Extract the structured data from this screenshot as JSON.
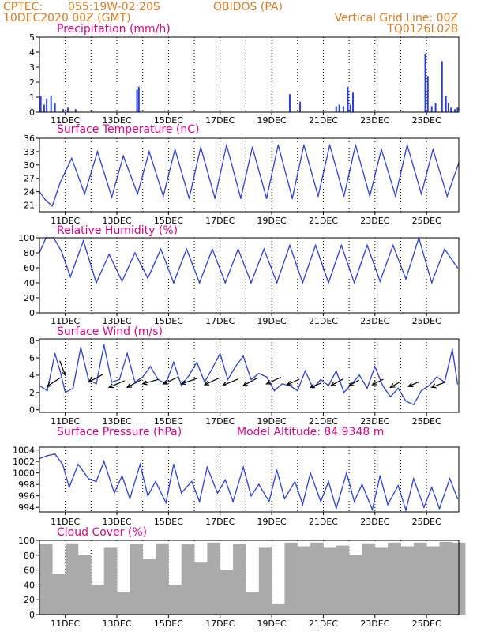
{
  "header": {
    "source": "CPTEC:",
    "coords": "055:19W-02:20S",
    "station": "OBIDOS (PA)",
    "run": "10DEC2020 00Z (GMT)",
    "grid_note": "Vertical Grid Line: 00Z",
    "model": "TQ0126L028"
  },
  "colors": {
    "header": "#e07a1f",
    "title": "#e0008a",
    "line": "#2a3fe0",
    "cloud": "#aaaaaa",
    "wind": "#000000"
  },
  "x_ticks": [
    "11DEC",
    "13DEC",
    "15DEC",
    "17DEC",
    "19DEC",
    "21DEC",
    "23DEC",
    "25DEC"
  ],
  "chart_data": [
    {
      "type": "bar",
      "title": "Precipitation (mm/h)",
      "x_unit": "days since 10DEC2020 00Z",
      "ylim": [
        0,
        5
      ],
      "yticks": [
        "0",
        "1",
        "2",
        "3",
        "4",
        "5"
      ],
      "x": [
        0.05,
        0.18,
        0.28,
        0.45,
        0.6,
        0.92,
        1.1,
        1.4,
        3.78,
        3.85,
        9.7,
        10.1,
        11.5,
        11.62,
        11.78,
        11.95,
        12.05,
        12.15,
        14.95,
        15.05,
        15.2,
        15.35,
        15.6,
        15.75,
        15.85,
        15.95,
        16.1,
        16.2
      ],
      "values": [
        1.1,
        0.5,
        0.9,
        1.1,
        0.6,
        0.2,
        0.3,
        0.2,
        1.5,
        1.7,
        1.2,
        0.7,
        0.4,
        0.5,
        0.4,
        1.7,
        0.5,
        1.3,
        3.9,
        2.4,
        0.4,
        0.6,
        3.4,
        1.1,
        0.6,
        0.3,
        0.2,
        0.3
      ]
    },
    {
      "type": "line",
      "title": "Surface Temperature (nC)",
      "x_unit": "days since 10DEC2020 00Z",
      "ylim": [
        19.5,
        36
      ],
      "yticks": [
        "21",
        "24",
        "27",
        "30",
        "33",
        "36"
      ],
      "series": [
        {
          "x": [
            0,
            0.25,
            0.5,
            0.8,
            1.25,
            1.75,
            2.25,
            2.8,
            3.25,
            3.8,
            4.25,
            4.8,
            5.25,
            5.8,
            6.25,
            6.8,
            7.25,
            7.8,
            8.25,
            8.8,
            9.25,
            9.8,
            10.25,
            10.8,
            11.25,
            11.8,
            12.25,
            12.8,
            13.25,
            13.8,
            14.25,
            14.8,
            15.25,
            15.8,
            16.25
          ],
          "values": [
            24,
            22,
            20.8,
            26,
            31.5,
            23.5,
            33,
            22.8,
            32,
            23.5,
            33,
            23,
            33.5,
            22.5,
            34,
            22.5,
            34.5,
            22.5,
            34,
            22.5,
            34.5,
            22.5,
            34.5,
            23,
            34.5,
            23,
            34.5,
            23,
            33.5,
            23,
            34.5,
            23.5,
            33.5,
            23,
            30.5
          ]
        }
      ]
    },
    {
      "type": "line",
      "title": "Relative Humidity (%)",
      "x_unit": "days since 10DEC2020 00Z",
      "ylim": [
        0,
        100
      ],
      "yticks": [
        "0",
        "20",
        "40",
        "60",
        "80",
        "100"
      ],
      "series": [
        {
          "x": [
            0,
            0.25,
            0.55,
            0.85,
            1.2,
            1.7,
            2.2,
            2.7,
            3.2,
            3.7,
            4.2,
            4.7,
            5.2,
            5.7,
            6.2,
            6.7,
            7.2,
            7.7,
            8.2,
            8.7,
            9.2,
            9.7,
            10.2,
            10.7,
            11.2,
            11.7,
            12.2,
            12.7,
            13.2,
            13.7,
            14.2,
            14.7,
            15.2,
            15.7,
            16.2
          ],
          "values": [
            80,
            100,
            100,
            82,
            48,
            96,
            40,
            78,
            42,
            80,
            46,
            85,
            40,
            85,
            40,
            85,
            40,
            85,
            40,
            85,
            40,
            90,
            40,
            90,
            40,
            90,
            40,
            90,
            42,
            90,
            45,
            100,
            40,
            85,
            60
          ]
        }
      ]
    },
    {
      "type": "line",
      "title": "Surface Wind (m/s)",
      "x_unit": "days since 10DEC2020 00Z",
      "ylim": [
        -0.3,
        8.2
      ],
      "yticks": [
        "0",
        "2",
        "4",
        "6",
        "8"
      ],
      "series": [
        {
          "x": [
            0,
            0.3,
            0.6,
            0.8,
            1.0,
            1.3,
            1.6,
            1.9,
            2.2,
            2.5,
            2.8,
            3.1,
            3.4,
            3.7,
            4.0,
            4.3,
            4.6,
            4.9,
            5.2,
            5.5,
            5.8,
            6.1,
            6.4,
            6.7,
            7.0,
            7.3,
            7.6,
            7.9,
            8.2,
            8.5,
            8.8,
            9.1,
            9.4,
            9.7,
            10.0,
            10.3,
            10.6,
            10.9,
            11.2,
            11.5,
            11.8,
            12.1,
            12.4,
            12.7,
            13.0,
            13.3,
            13.6,
            13.9,
            14.2,
            14.5,
            14.8,
            15.1,
            15.4,
            15.7,
            16.0,
            16.2
          ],
          "values": [
            2.8,
            2.2,
            6.5,
            4.5,
            2,
            2.5,
            7.2,
            3.5,
            3,
            7.5,
            3.2,
            3.5,
            6.5,
            3.2,
            3.8,
            5,
            3.5,
            3,
            5.5,
            2.8,
            4,
            5.5,
            3.2,
            4.8,
            6.5,
            3.5,
            5,
            6.2,
            3.5,
            4.2,
            3.8,
            2.2,
            3,
            2.8,
            2.2,
            4.5,
            2.5,
            3.5,
            2.8,
            4.5,
            2,
            3,
            4,
            2.5,
            5,
            2.8,
            1.5,
            2.5,
            1,
            0.6,
            2.2,
            2.8,
            3.8,
            3.2,
            7,
            3
          ]
        }
      ],
      "wind_vectors": [
        {
          "x": 0.3,
          "y": 2.7,
          "dx": 1.2,
          "dy": 0.8
        },
        {
          "x": 1.0,
          "y": 4.0,
          "dx": -0.5,
          "dy": 1.3
        },
        {
          "x": 1.9,
          "y": 3.2,
          "dx": 1.3,
          "dy": 0.7
        },
        {
          "x": 2.7,
          "y": 2.6,
          "dx": 1.4,
          "dy": 0.6
        },
        {
          "x": 3.4,
          "y": 2.6,
          "dx": 1.3,
          "dy": 0.7
        },
        {
          "x": 4.0,
          "y": 3.0,
          "dx": 1.4,
          "dy": 0.4
        },
        {
          "x": 4.8,
          "y": 3.0,
          "dx": 1.3,
          "dy": 0.6
        },
        {
          "x": 5.5,
          "y": 3.0,
          "dx": 1.4,
          "dy": 0.5
        },
        {
          "x": 6.4,
          "y": 2.9,
          "dx": 1.3,
          "dy": 0.6
        },
        {
          "x": 7.1,
          "y": 2.8,
          "dx": 1.4,
          "dy": 0.6
        },
        {
          "x": 7.9,
          "y": 2.8,
          "dx": 1.3,
          "dy": 0.7
        },
        {
          "x": 8.8,
          "y": 3.0,
          "dx": 1.3,
          "dy": 0.6
        },
        {
          "x": 9.6,
          "y": 2.9,
          "dx": 1.1,
          "dy": 0.5
        },
        {
          "x": 10.5,
          "y": 2.6,
          "dx": 1.0,
          "dy": 0.4
        },
        {
          "x": 11.3,
          "y": 2.8,
          "dx": 1.1,
          "dy": 0.6
        },
        {
          "x": 12.0,
          "y": 2.8,
          "dx": 0.9,
          "dy": 0.5
        },
        {
          "x": 12.9,
          "y": 2.9,
          "dx": 1.0,
          "dy": 0.5
        },
        {
          "x": 13.6,
          "y": 2.6,
          "dx": 0.9,
          "dy": 0.5
        },
        {
          "x": 14.3,
          "y": 2.7,
          "dx": 0.9,
          "dy": 0.4
        },
        {
          "x": 15.2,
          "y": 2.6,
          "dx": 1.3,
          "dy": 0.5
        }
      ]
    },
    {
      "type": "line",
      "title": "Surface Pressure (hPa)",
      "note": "Model Altitude: 84.9348 m",
      "x_unit": "days since 10DEC2020 00Z",
      "ylim": [
        993.2,
        1004.5
      ],
      "yticks": [
        "994",
        "996",
        "998",
        "1000",
        "1002",
        "1004"
      ],
      "series": [
        {
          "x": [
            0,
            0.3,
            0.6,
            0.9,
            1.15,
            1.5,
            1.9,
            2.2,
            2.5,
            2.9,
            3.2,
            3.5,
            3.9,
            4.2,
            4.5,
            4.9,
            5.2,
            5.5,
            5.9,
            6.2,
            6.5,
            6.9,
            7.2,
            7.5,
            7.9,
            8.2,
            8.5,
            8.9,
            9.2,
            9.5,
            9.9,
            10.2,
            10.5,
            10.9,
            11.2,
            11.5,
            11.9,
            12.2,
            12.5,
            12.9,
            13.2,
            13.5,
            13.9,
            14.2,
            14.5,
            14.9,
            15.2,
            15.5,
            15.9,
            16.2
          ],
          "values": [
            1002.5,
            1003,
            1003.3,
            1001.5,
            997.5,
            1001.5,
            999,
            998.5,
            1002,
            996.5,
            999.5,
            995.5,
            1001.5,
            996,
            998.5,
            994.8,
            1001.5,
            996.5,
            998.5,
            995,
            1001,
            996.5,
            998.8,
            995,
            1001,
            996,
            998,
            995,
            1000.5,
            995.5,
            998.5,
            994.5,
            1000,
            995,
            998.5,
            993.8,
            1000,
            995,
            998,
            993.6,
            999.5,
            994.5,
            997.8,
            993.5,
            999,
            994,
            997.5,
            993.8,
            999,
            995.5
          ]
        }
      ]
    },
    {
      "type": "bar",
      "title": "Cloud Cover (%)",
      "x_unit": "days since 10DEC2020 00Z",
      "ylim": [
        0,
        100
      ],
      "yticks": [
        "0",
        "20",
        "40",
        "60",
        "80",
        "100"
      ],
      "x": [
        0,
        0.5,
        1,
        1.5,
        2,
        2.5,
        3,
        3.5,
        4,
        4.5,
        5,
        5.5,
        6,
        6.5,
        7,
        7.5,
        8,
        8.5,
        9,
        9.5,
        10,
        10.5,
        11,
        11.5,
        12,
        12.5,
        13,
        13.5,
        14,
        14.5,
        15,
        15.5,
        16
      ],
      "values": [
        95,
        55,
        96,
        80,
        40,
        90,
        30,
        95,
        75,
        96,
        40,
        95,
        70,
        97,
        60,
        95,
        30,
        90,
        15,
        97,
        92,
        97,
        90,
        93,
        80,
        96,
        90,
        97,
        92,
        97,
        92,
        98,
        97
      ]
    }
  ]
}
